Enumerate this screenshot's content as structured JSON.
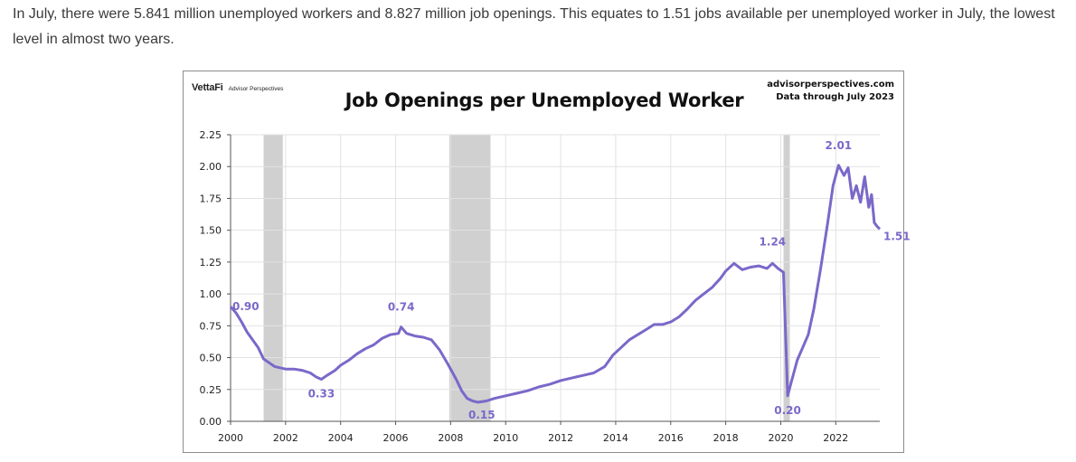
{
  "article": {
    "paragraph": "In July, there were 5.841 million unemployed workers and 8.827 million job openings. This equates to 1.51 jobs available per unemployed worker in July, the lowest level in almost two years."
  },
  "figure": {
    "brand_logo": "VettaFi",
    "brand_sub": "Advisor Perspectives",
    "source_line1": "advisorperspectives.com",
    "source_line2": "Data through July 2023"
  },
  "chart_data": {
    "type": "line",
    "title": "Job Openings per Unemployed Worker",
    "xlabel": "",
    "ylabel": "",
    "xlim": [
      2000,
      2023.6
    ],
    "ylim": [
      0,
      2.25
    ],
    "x_ticks": [
      "2000",
      "2002",
      "2004",
      "2006",
      "2008",
      "2010",
      "2012",
      "2014",
      "2016",
      "2018",
      "2020",
      "2022"
    ],
    "y_ticks": [
      "0.00",
      "0.25",
      "0.50",
      "0.75",
      "1.00",
      "1.25",
      "1.50",
      "1.75",
      "2.00",
      "2.25"
    ],
    "grid": true,
    "line_color": "#7b68c9",
    "recessions": [
      [
        2001.2,
        2001.9
      ],
      [
        2007.95,
        2009.45
      ],
      [
        2020.1,
        2020.33
      ]
    ],
    "series": [
      {
        "values_xy": [
          [
            2000.0,
            0.9
          ],
          [
            2000.2,
            0.85
          ],
          [
            2000.4,
            0.78
          ],
          [
            2000.6,
            0.7
          ],
          [
            2000.8,
            0.64
          ],
          [
            2001.0,
            0.58
          ],
          [
            2001.2,
            0.49
          ],
          [
            2001.4,
            0.46
          ],
          [
            2001.6,
            0.43
          ],
          [
            2001.8,
            0.42
          ],
          [
            2002.0,
            0.41
          ],
          [
            2002.3,
            0.41
          ],
          [
            2002.6,
            0.4
          ],
          [
            2002.9,
            0.38
          ],
          [
            2003.1,
            0.35
          ],
          [
            2003.3,
            0.33
          ],
          [
            2003.5,
            0.36
          ],
          [
            2003.8,
            0.4
          ],
          [
            2004.0,
            0.44
          ],
          [
            2004.3,
            0.48
          ],
          [
            2004.6,
            0.53
          ],
          [
            2004.9,
            0.57
          ],
          [
            2005.2,
            0.6
          ],
          [
            2005.5,
            0.65
          ],
          [
            2005.8,
            0.68
          ],
          [
            2006.1,
            0.69
          ],
          [
            2006.2,
            0.74
          ],
          [
            2006.4,
            0.69
          ],
          [
            2006.7,
            0.67
          ],
          [
            2007.0,
            0.66
          ],
          [
            2007.3,
            0.64
          ],
          [
            2007.6,
            0.56
          ],
          [
            2007.9,
            0.45
          ],
          [
            2008.2,
            0.33
          ],
          [
            2008.4,
            0.24
          ],
          [
            2008.6,
            0.18
          ],
          [
            2008.8,
            0.16
          ],
          [
            2009.0,
            0.15
          ],
          [
            2009.3,
            0.16
          ],
          [
            2009.6,
            0.18
          ],
          [
            2010.0,
            0.2
          ],
          [
            2010.4,
            0.22
          ],
          [
            2010.8,
            0.24
          ],
          [
            2011.2,
            0.27
          ],
          [
            2011.6,
            0.29
          ],
          [
            2012.0,
            0.32
          ],
          [
            2012.4,
            0.34
          ],
          [
            2012.8,
            0.36
          ],
          [
            2013.2,
            0.38
          ],
          [
            2013.6,
            0.43
          ],
          [
            2013.9,
            0.52
          ],
          [
            2014.2,
            0.58
          ],
          [
            2014.5,
            0.64
          ],
          [
            2014.8,
            0.68
          ],
          [
            2015.1,
            0.72
          ],
          [
            2015.4,
            0.76
          ],
          [
            2015.7,
            0.76
          ],
          [
            2016.0,
            0.78
          ],
          [
            2016.3,
            0.82
          ],
          [
            2016.6,
            0.88
          ],
          [
            2016.9,
            0.95
          ],
          [
            2017.2,
            1.0
          ],
          [
            2017.5,
            1.05
          ],
          [
            2017.8,
            1.12
          ],
          [
            2018.0,
            1.18
          ],
          [
            2018.3,
            1.24
          ],
          [
            2018.6,
            1.19
          ],
          [
            2018.9,
            1.21
          ],
          [
            2019.2,
            1.22
          ],
          [
            2019.5,
            1.2
          ],
          [
            2019.7,
            1.24
          ],
          [
            2019.9,
            1.2
          ],
          [
            2020.1,
            1.17
          ],
          [
            2020.25,
            0.2
          ],
          [
            2020.4,
            0.32
          ],
          [
            2020.6,
            0.48
          ],
          [
            2020.8,
            0.58
          ],
          [
            2021.0,
            0.68
          ],
          [
            2021.2,
            0.88
          ],
          [
            2021.45,
            1.2
          ],
          [
            2021.7,
            1.55
          ],
          [
            2021.9,
            1.85
          ],
          [
            2022.1,
            2.01
          ],
          [
            2022.3,
            1.93
          ],
          [
            2022.45,
            1.99
          ],
          [
            2022.6,
            1.75
          ],
          [
            2022.75,
            1.85
          ],
          [
            2022.9,
            1.72
          ],
          [
            2023.05,
            1.92
          ],
          [
            2023.2,
            1.68
          ],
          [
            2023.3,
            1.78
          ],
          [
            2023.4,
            1.56
          ],
          [
            2023.5,
            1.53
          ],
          [
            2023.6,
            1.51
          ]
        ]
      }
    ],
    "annotations": [
      {
        "label": "0.90",
        "x": 2000.0,
        "y": 0.9
      },
      {
        "label": "0.33",
        "x": 2003.3,
        "y": 0.33
      },
      {
        "label": "0.74",
        "x": 2006.2,
        "y": 0.74
      },
      {
        "label": "0.15",
        "x": 2009.0,
        "y": 0.15
      },
      {
        "label": "1.24",
        "x": 2019.7,
        "y": 1.24
      },
      {
        "label": "0.20",
        "x": 2020.25,
        "y": 0.2
      },
      {
        "label": "2.01",
        "x": 2022.1,
        "y": 2.01
      },
      {
        "label": "1.51",
        "x": 2023.6,
        "y": 1.51
      }
    ]
  }
}
